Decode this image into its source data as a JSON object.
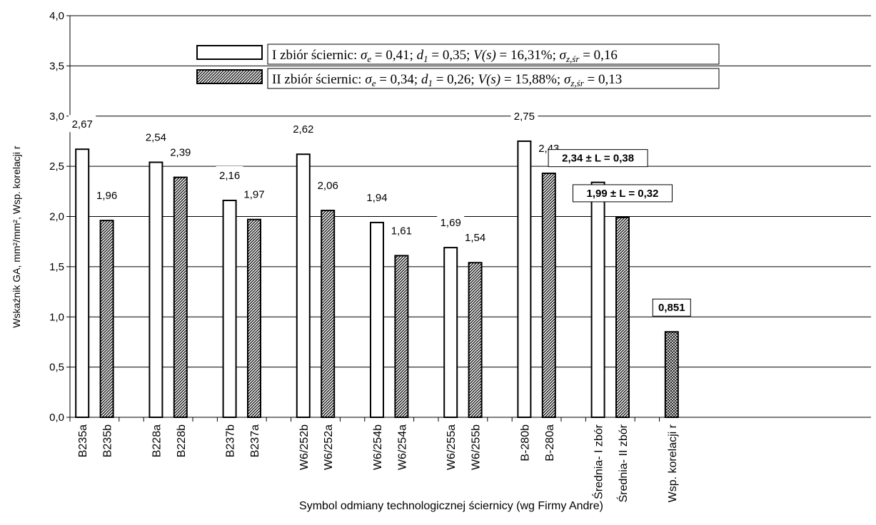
{
  "chart_data": {
    "type": "bar",
    "ylabel": "Wskaźnik GA, mm²/mm², Wsp. korelacji r",
    "xlabel": "Symbol odmiany technologicznej ściernicy (wg Firmy Andre)",
    "ylim": [
      0,
      4
    ],
    "yticks": [
      "0,0",
      "0,5",
      "1,0",
      "1,5",
      "2,0",
      "2,5",
      "3,0",
      "3,5",
      "4,0"
    ],
    "grid": true,
    "legend_position": "top-center",
    "colors": {
      "bar_fill": "#ffffff",
      "hatch_fill": "#000000",
      "border": "#000000"
    },
    "legend": [
      {
        "name": "I zbiór ściernic",
        "pattern": "plain",
        "text": "I zbiór ściernic: σe = 0,41; d1 = 0,35; V(s) = 16,31%; σz,śr = 0,16"
      },
      {
        "name": "II zbiór ściernic",
        "pattern": "diagonal",
        "text": "II zbiór ściernic: σe = 0,34; d1 = 0,26; V(s) = 15,88%; σz,śr = 0,13"
      }
    ],
    "bars": [
      {
        "category": "B235a",
        "value": 2.67,
        "label": "2,67",
        "pattern": "plain"
      },
      {
        "category": "B235b",
        "value": 1.96,
        "label": "1,96",
        "pattern": "diagonal"
      },
      {
        "category": "B228a",
        "value": 2.54,
        "label": "2,54",
        "pattern": "plain"
      },
      {
        "category": "B228b",
        "value": 2.39,
        "label": "2,39",
        "pattern": "diagonal"
      },
      {
        "category": "B237b",
        "value": 2.16,
        "label": "2,16",
        "pattern": "plain"
      },
      {
        "category": "B237a",
        "value": 1.97,
        "label": "1,97",
        "pattern": "diagonal"
      },
      {
        "category": "W6/252b",
        "value": 2.62,
        "label": "2,62",
        "pattern": "plain"
      },
      {
        "category": "W6/252a",
        "value": 2.06,
        "label": "2,06",
        "pattern": "diagonal"
      },
      {
        "category": "W6/254b",
        "value": 1.94,
        "label": "1,94",
        "pattern": "plain"
      },
      {
        "category": "W6/254a",
        "value": 1.61,
        "label": "1,61",
        "pattern": "diagonal"
      },
      {
        "category": "W6/255a",
        "value": 1.69,
        "label": "1,69",
        "pattern": "plain"
      },
      {
        "category": "W6/255b",
        "value": 1.54,
        "label": "1,54",
        "pattern": "diagonal"
      },
      {
        "category": "B-280b",
        "value": 2.75,
        "label": "2,75",
        "pattern": "plain"
      },
      {
        "category": "B-280a",
        "value": 2.43,
        "label": "2,43",
        "pattern": "diagonal"
      },
      {
        "category": "Średnia- I zbór",
        "value": 2.34,
        "label": "2,34 ± L = 0,38",
        "pattern": "plain",
        "boxed_label": true
      },
      {
        "category": "Średnia- II zbór",
        "value": 1.99,
        "label": "1,99 ± L = 0,32",
        "pattern": "diagonal",
        "boxed_label": true
      },
      {
        "category": "Wsp. korelacji r",
        "value": 0.851,
        "label": "0,851",
        "pattern": "crosshatch",
        "boxed_label": true
      }
    ]
  }
}
